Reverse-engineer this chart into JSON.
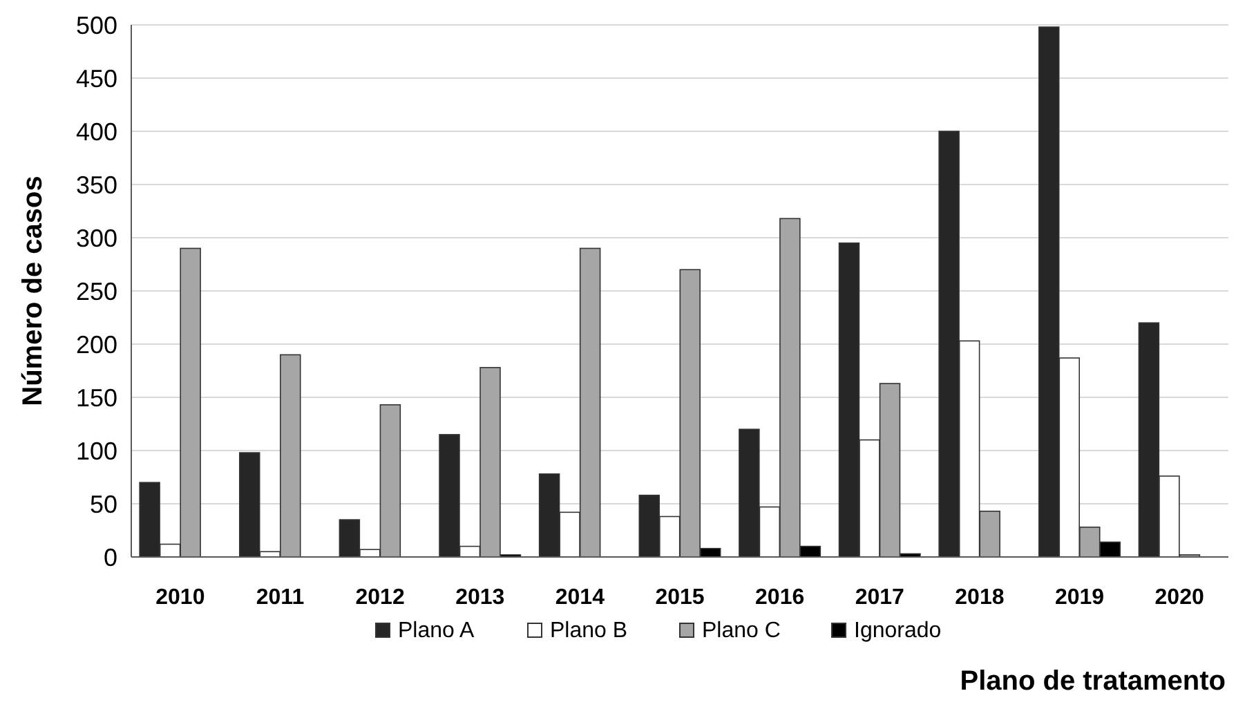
{
  "chart_data": {
    "type": "bar",
    "xlabel": "Plano de tratamento",
    "ylabel": "Número de casos",
    "categories": [
      "2010",
      "2011",
      "2012",
      "2013",
      "2014",
      "2015",
      "2016",
      "2017",
      "2018",
      "2019",
      "2020"
    ],
    "series": [
      {
        "name": "Plano A",
        "color": "#262626",
        "values": [
          70,
          98,
          35,
          115,
          78,
          58,
          120,
          295,
          400,
          498,
          220
        ]
      },
      {
        "name": "Plano B",
        "color": "#ffffff",
        "values": [
          12,
          5,
          7,
          10,
          42,
          38,
          47,
          110,
          203,
          187,
          76
        ]
      },
      {
        "name": "Plano C",
        "color": "#a6a6a6",
        "values": [
          290,
          190,
          143,
          178,
          290,
          270,
          318,
          163,
          43,
          28,
          2
        ]
      },
      {
        "name": "Ignorado",
        "color": "#000000",
        "values": [
          0,
          0,
          0,
          2,
          0,
          8,
          10,
          3,
          0,
          14,
          0
        ]
      }
    ],
    "ylim": [
      0,
      500
    ],
    "yticks": [
      0,
      50,
      100,
      150,
      200,
      250,
      300,
      350,
      400,
      450,
      500
    ],
    "grid": "y",
    "legend": "bottom"
  }
}
